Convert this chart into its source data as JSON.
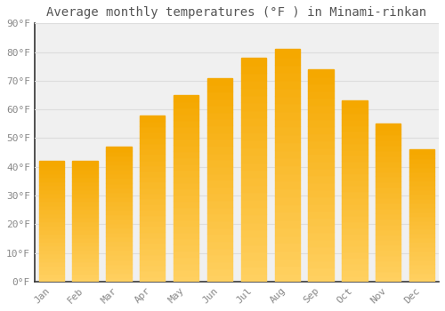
{
  "title": "Average monthly temperatures (°F ) in Minami-rinkan",
  "months": [
    "Jan",
    "Feb",
    "Mar",
    "Apr",
    "May",
    "Jun",
    "Jul",
    "Aug",
    "Sep",
    "Oct",
    "Nov",
    "Dec"
  ],
  "values": [
    42,
    42,
    47,
    58,
    65,
    71,
    78,
    81,
    74,
    63,
    55,
    46
  ],
  "bar_color_top": "#F5A800",
  "bar_color_bottom": "#FFD060",
  "background_color": "#ffffff",
  "plot_bg_color": "#f0f0f0",
  "grid_color": "#dddddd",
  "text_color": "#888888",
  "title_color": "#555555",
  "spine_color": "#333333",
  "ylim": [
    0,
    90
  ],
  "yticks": [
    0,
    10,
    20,
    30,
    40,
    50,
    60,
    70,
    80,
    90
  ],
  "ytick_labels": [
    "0°F",
    "10°F",
    "20°F",
    "30°F",
    "40°F",
    "50°F",
    "60°F",
    "70°F",
    "80°F",
    "90°F"
  ],
  "title_fontsize": 10,
  "tick_fontsize": 8,
  "bar_width": 0.75
}
